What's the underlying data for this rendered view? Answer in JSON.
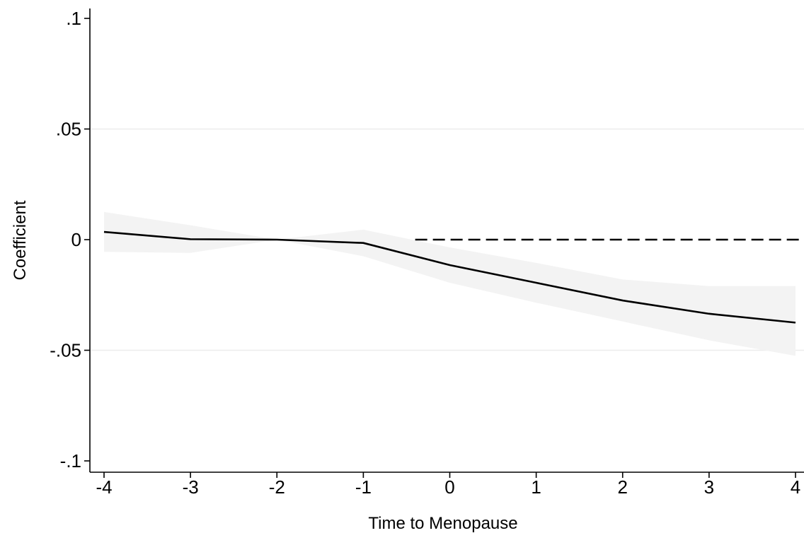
{
  "chart_data": {
    "type": "line",
    "title": "",
    "xlabel": "Time to Menopause",
    "ylabel": "Coefficient",
    "xlim": [
      -4,
      4
    ],
    "ylim": [
      -0.1,
      0.1
    ],
    "x": [
      -4,
      -3,
      -2,
      -1,
      0,
      1,
      2,
      3,
      4
    ],
    "x_tick_labels": [
      "-4",
      "-3",
      "-2",
      "-1",
      "0",
      "1",
      "2",
      "3",
      "4"
    ],
    "y_ticks": [
      -0.1,
      -0.05,
      0,
      0.05,
      0.1
    ],
    "y_tick_labels": [
      "-.1",
      "-.05",
      "0",
      ".05",
      ".1"
    ],
    "series": [
      {
        "values": [
          0.0035,
          0.0002,
          0.0,
          -0.0015,
          -0.0115,
          -0.0195,
          -0.0275,
          -0.0335,
          -0.0375
        ],
        "ci_lower": [
          -0.0055,
          -0.006,
          0.0,
          -0.0075,
          -0.0195,
          -0.0285,
          -0.037,
          -0.0455,
          -0.0525
        ],
        "ci_upper": [
          0.0125,
          0.0065,
          0.0,
          0.0045,
          -0.0035,
          -0.0105,
          -0.018,
          -0.021,
          -0.021
        ],
        "color": "#000000",
        "ci_color": "#f3f3f3"
      }
    ],
    "reference_line": {
      "y": 0,
      "from_x": -0.4,
      "to_x": 4,
      "style": "dashed",
      "color": "#000000"
    },
    "grid": true,
    "grid_color": "#ececec",
    "legend": "none"
  }
}
